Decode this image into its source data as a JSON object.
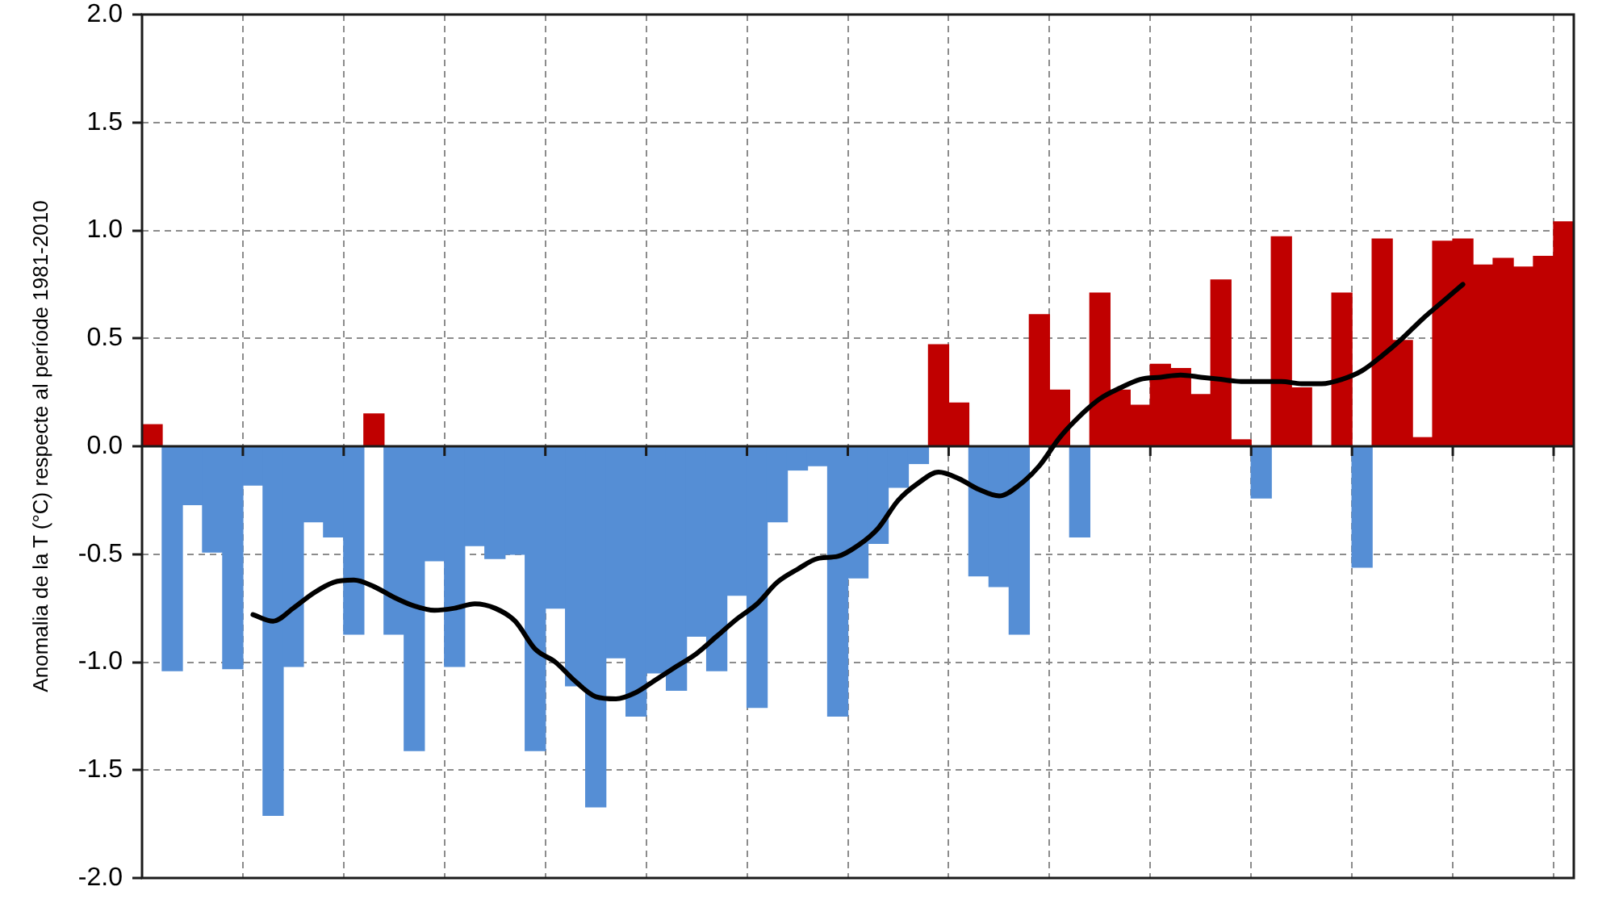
{
  "chart_data": {
    "type": "bar",
    "ylabel": "Anomalia de la T (°C) respecte al període 1981-2010",
    "categories": [
      null,
      null,
      null,
      null,
      null,
      null,
      null,
      null,
      null,
      null,
      null,
      null,
      null,
      null,
      null,
      null,
      null,
      null,
      null,
      null,
      null,
      null,
      null,
      null,
      null,
      null,
      null,
      null,
      null,
      null,
      null,
      null,
      null,
      null,
      null,
      null,
      null,
      null,
      null,
      null,
      null,
      null,
      null,
      null,
      null,
      null,
      null,
      null,
      null,
      null,
      null,
      null,
      null,
      null,
      null,
      null,
      null,
      null,
      null,
      null,
      null,
      null,
      null,
      null,
      null,
      null,
      null,
      null,
      null,
      null,
      null
    ],
    "series": [
      {
        "values": [
          0.1,
          -1.04,
          -0.27,
          -0.49,
          -1.03,
          -0.18,
          -1.71,
          -1.02,
          -0.35,
          -0.42,
          -0.87,
          0.15,
          -0.87,
          -1.41,
          -0.53,
          -1.02,
          -0.46,
          -0.52,
          -0.5,
          -1.41,
          -0.75,
          -1.11,
          -1.67,
          -0.98,
          -1.25,
          -1.05,
          -1.13,
          -0.88,
          -1.04,
          -0.69,
          -1.21,
          -0.35,
          -0.11,
          -0.09,
          -1.25,
          -0.61,
          -0.45,
          -0.19,
          -0.08,
          0.47,
          0.2,
          -0.6,
          -0.65,
          -0.87,
          0.61,
          0.26,
          -0.42,
          0.71,
          0.26,
          0.19,
          0.38,
          0.36,
          0.24,
          0.77,
          0.03,
          -0.24,
          0.97,
          0.27,
          0.0,
          0.71,
          -0.56,
          0.96,
          0.49,
          0.04,
          0.95,
          0.96,
          0.84,
          0.87,
          0.83,
          0.88,
          1.04
        ],
        "colors": [
          "#c00000",
          "#558ed5",
          "#558ed5",
          "#558ed5",
          "#558ed5",
          "#558ed5",
          "#558ed5",
          "#558ed5",
          "#558ed5",
          "#558ed5",
          "#558ed5",
          "#c00000",
          "#558ed5",
          "#558ed5",
          "#558ed5",
          "#558ed5",
          "#558ed5",
          "#558ed5",
          "#558ed5",
          "#558ed5",
          "#558ed5",
          "#558ed5",
          "#558ed5",
          "#558ed5",
          "#558ed5",
          "#558ed5",
          "#558ed5",
          "#558ed5",
          "#558ed5",
          "#558ed5",
          "#558ed5",
          "#558ed5",
          "#558ed5",
          "#558ed5",
          "#558ed5",
          "#558ed5",
          "#558ed5",
          "#558ed5",
          "#558ed5",
          "#c00000",
          "#c00000",
          "#558ed5",
          "#558ed5",
          "#558ed5",
          "#c00000",
          "#c00000",
          "#558ed5",
          "#c00000",
          "#c00000",
          "#c00000",
          "#c00000",
          "#c00000",
          "#c00000",
          "#c00000",
          "#c00000",
          "#558ed5",
          "#c00000",
          "#c00000",
          "#558ed5",
          "#c00000",
          "#558ed5",
          "#c00000",
          "#c00000",
          "#c00000",
          "#c00000",
          "#c00000",
          "#c00000",
          "#c00000",
          "#c00000",
          "#c00000",
          "#c00000"
        ]
      },
      {
        "type": "line",
        "color": "#000000",
        "values": [
          null,
          null,
          null,
          null,
          null,
          -0.78,
          -0.81,
          -0.75,
          -0.68,
          -0.63,
          -0.62,
          -0.65,
          -0.7,
          -0.74,
          -0.76,
          -0.75,
          -0.73,
          -0.75,
          -0.81,
          -0.94,
          -1.0,
          -1.09,
          -1.16,
          -1.17,
          -1.14,
          -1.08,
          -1.02,
          -0.96,
          -0.88,
          -0.8,
          -0.73,
          -0.63,
          -0.57,
          -0.52,
          -0.51,
          -0.46,
          -0.38,
          -0.25,
          -0.17,
          -0.12,
          -0.15,
          -0.2,
          -0.23,
          -0.18,
          -0.09,
          0.04,
          0.14,
          0.22,
          0.27,
          0.31,
          0.32,
          0.33,
          0.32,
          0.31,
          0.3,
          0.3,
          0.3,
          0.29,
          0.29,
          0.31,
          0.35,
          0.42,
          0.5,
          0.59,
          0.67,
          0.75,
          null,
          null,
          null,
          null,
          null
        ]
      }
    ],
    "ylim": [
      -2,
      2
    ],
    "yticks": [
      {
        "value": -2,
        "label": "-2.0"
      },
      {
        "value": -1.5,
        "label": "-1.5"
      },
      {
        "value": -1,
        "label": "-1.0"
      },
      {
        "value": -0.5,
        "label": "-0.5"
      },
      {
        "value": 0,
        "label": "0.0"
      },
      {
        "value": 0.5,
        "label": "0.5"
      },
      {
        "value": 1,
        "label": "1.0"
      },
      {
        "value": 1.5,
        "label": "1.5"
      },
      {
        "value": 2,
        "label": "2.0"
      }
    ],
    "grid": true,
    "tick_labels": "y"
  }
}
